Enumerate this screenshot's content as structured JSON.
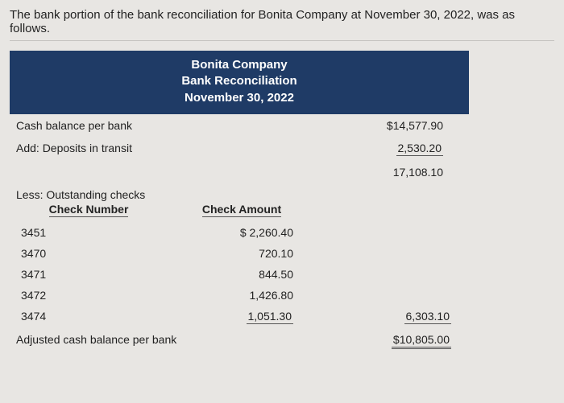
{
  "intro": "The bank portion of the bank reconciliation for Bonita Company at November 30, 2022, was as follows.",
  "header": {
    "company": "Bonita Company",
    "title": "Bank Reconciliation",
    "date": "November 30, 2022"
  },
  "lines": {
    "cash_balance_label": "Cash balance per bank",
    "cash_balance_value": "$14,577.90",
    "add_deposits_label": "Add: Deposits in transit",
    "add_deposits_value": "2,530.20",
    "subtotal_value": "17,108.10",
    "less_outstanding_label": "Less: Outstanding checks",
    "check_number_header": "Check Number",
    "check_amount_header": "Check Amount",
    "checks_total": "6,303.10",
    "adjusted_label": "Adjusted cash balance per bank",
    "adjusted_value": "$10,805.00"
  },
  "checks": [
    {
      "number": "3451",
      "amount": "$ 2,260.40"
    },
    {
      "number": "3470",
      "amount": "720.10"
    },
    {
      "number": "3471",
      "amount": "844.50"
    },
    {
      "number": "3472",
      "amount": "1,426.80"
    },
    {
      "number": "3474",
      "amount": "1,051.30"
    }
  ],
  "style": {
    "background_color": "#e8e6e3",
    "header_bg": "#1f3b66",
    "header_fg": "#ffffff",
    "text_color": "#222222",
    "rule_color": "#555555",
    "body_font_size_pt": 11,
    "intro_font_size_pt": 11,
    "header_font_size_pt": 11,
    "font_family": "Arial"
  }
}
